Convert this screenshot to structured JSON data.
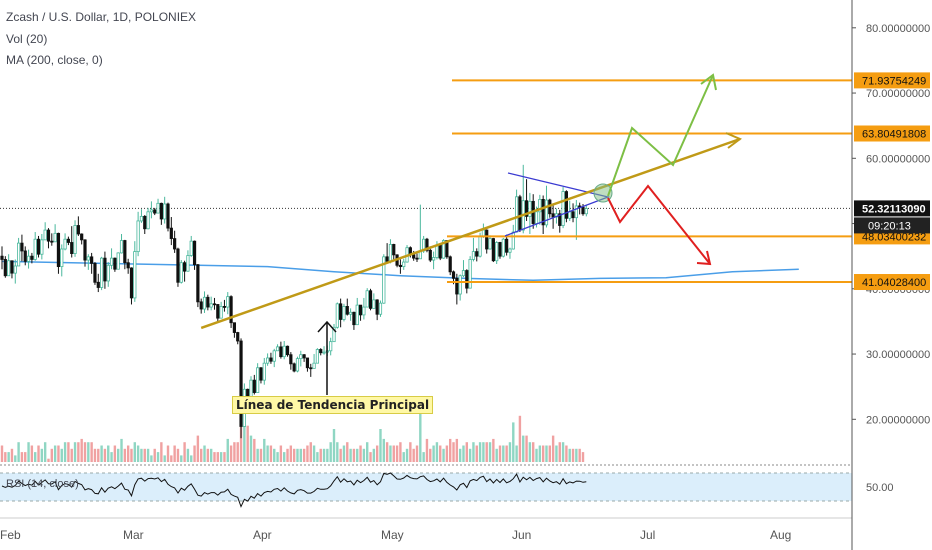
{
  "header": {
    "title": "Zcash / U.S. Dollar, 1D, POLONIEX",
    "vol": "Vol (20)",
    "ma": "MA (200, close, 0)"
  },
  "annotation": {
    "trend_label": "Línea de Tendencia Principal"
  },
  "rsi": {
    "label": "RSI (14, close)",
    "level_label": "50.00"
  },
  "colors": {
    "up": "#4ab89d",
    "down": "#111111",
    "ma": "#4a9ee8",
    "trend": "#c09a17",
    "level": "#f59d11",
    "triangle": "#3a3ad1",
    "green_path": "#7dbf45",
    "red_path": "#e02020",
    "price_label_bg": "#f59d11",
    "rsi_band": "#dbeefb"
  },
  "chart_data": {
    "type": "candlestick",
    "title": "Zcash / U.S. Dollar, 1D, POLONIEX",
    "x_tick_labels": [
      "Feb",
      "Mar",
      "Apr",
      "May",
      "Jun",
      "Jul",
      "Aug"
    ],
    "y_tick_labels": [
      "20.00000000",
      "30.00000000",
      "40.00000000",
      "50.00000000",
      "60.00000000",
      "70.00000000",
      "80.00000000"
    ],
    "y_ticks": [
      20,
      30,
      40,
      50,
      60,
      70,
      80
    ],
    "ylim": [
      13.2,
      82.7
    ],
    "horizontal_levels": [
      {
        "label": "71.93754249",
        "value": 71.94
      },
      {
        "label": "63.80491808",
        "value": 63.8
      },
      {
        "label": "48.03400232",
        "value": 48.03
      },
      {
        "label": "41.04028400",
        "value": 41.04
      }
    ],
    "current_price": {
      "label": "52.32113090",
      "value": 52.32
    },
    "countdown": "09:20:13",
    "ma200": [
      [
        0,
        44.2
      ],
      [
        40,
        43.8
      ],
      [
        80,
        43.4
      ],
      [
        100,
        42.6
      ],
      [
        120,
        42.0
      ],
      [
        140,
        41.6
      ],
      [
        160,
        41.3
      ],
      [
        180,
        41.6
      ],
      [
        200,
        41.7
      ],
      [
        220,
        42.6
      ],
      [
        240,
        43.0
      ]
    ],
    "trend_line": [
      [
        60,
        34.0
      ],
      [
        240,
        58.0
      ]
    ],
    "candles": [
      [
        45.0,
        46.5,
        43.0,
        44.5
      ],
      [
        44.5,
        45.0,
        41.7,
        42.0
      ],
      [
        42.0,
        45.3,
        42.0,
        44.3
      ],
      [
        44.3,
        44.3,
        41.6,
        42.4
      ],
      [
        42.4,
        44.5,
        40.8,
        43.5
      ],
      [
        43.5,
        47.8,
        43.5,
        47.0
      ],
      [
        47.0,
        48.3,
        44.2,
        45.8
      ],
      [
        45.8,
        46.5,
        43.6,
        44.2
      ],
      [
        44.2,
        46.0,
        43.1,
        45.0
      ],
      [
        45.0,
        45.5,
        43.9,
        44.5
      ],
      [
        44.5,
        48.7,
        44.3,
        47.6
      ],
      [
        47.6,
        48.1,
        44.8,
        45.3
      ],
      [
        45.3,
        48.4,
        44.5,
        47.5
      ],
      [
        47.5,
        50.2,
        47.5,
        49.0
      ],
      [
        49.0,
        49.3,
        46.2,
        47.3
      ],
      [
        47.3,
        48.5,
        46.6,
        47.2
      ],
      [
        47.2,
        49.9,
        47.2,
        48.5
      ],
      [
        48.5,
        48.6,
        42.3,
        43.4
      ],
      [
        43.4,
        46.8,
        41.9,
        46.1
      ],
      [
        46.1,
        48.5,
        45.9,
        47.6
      ],
      [
        47.6,
        48.0,
        46.7,
        47.1
      ],
      [
        47.1,
        49.6,
        44.8,
        45.4
      ],
      [
        45.4,
        50.5,
        44.9,
        49.7
      ],
      [
        49.7,
        51.1,
        48.1,
        48.4
      ],
      [
        48.4,
        48.5,
        46.8,
        47.5
      ],
      [
        47.5,
        47.6,
        43.4,
        44.4
      ],
      [
        44.4,
        45.3,
        42.9,
        44.9
      ],
      [
        44.9,
        45.5,
        42.3,
        43.9
      ],
      [
        43.9,
        44.1,
        40.6,
        41.0
      ],
      [
        41.0,
        42.3,
        39.5,
        40.2
      ],
      [
        40.2,
        44.9,
        39.8,
        44.7
      ],
      [
        44.7,
        45.7,
        40.0,
        41.2
      ],
      [
        41.2,
        44.1,
        40.3,
        43.6
      ],
      [
        43.6,
        46.2,
        43.0,
        44.7
      ],
      [
        44.7,
        44.8,
        42.6,
        43.0
      ],
      [
        43.0,
        45.6,
        43.0,
        45.5
      ],
      [
        45.5,
        48.4,
        45.4,
        47.4
      ],
      [
        47.4,
        47.5,
        43.0,
        44.0
      ],
      [
        44.0,
        44.6,
        42.3,
        43.2
      ],
      [
        43.2,
        43.3,
        37.6,
        38.6
      ],
      [
        38.6,
        47.3,
        38.0,
        45.7
      ],
      [
        45.7,
        51.8,
        45.0,
        50.4
      ],
      [
        50.4,
        52.2,
        50.1,
        51.1
      ],
      [
        51.1,
        51.3,
        48.4,
        49.2
      ],
      [
        49.2,
        52.4,
        49.1,
        51.8
      ],
      [
        51.8,
        53.4,
        50.8,
        52.1
      ],
      [
        52.1,
        52.4,
        51.3,
        51.6
      ],
      [
        51.6,
        53.8,
        51.6,
        53.1
      ],
      [
        53.1,
        53.2,
        49.8,
        50.7
      ],
      [
        50.7,
        54.1,
        50.0,
        53.0
      ],
      [
        53.0,
        53.2,
        48.8,
        49.3
      ],
      [
        49.3,
        51.0,
        46.7,
        47.7
      ],
      [
        47.7,
        48.9,
        45.5,
        46.1
      ],
      [
        46.1,
        46.3,
        40.3,
        41.0
      ],
      [
        41.0,
        44.4,
        40.8,
        44.0
      ],
      [
        44.0,
        44.3,
        41.1,
        42.7
      ],
      [
        42.7,
        45.9,
        42.6,
        45.1
      ],
      [
        45.1,
        48.1,
        44.9,
        47.3
      ],
      [
        47.3,
        47.4,
        42.9,
        43.7
      ],
      [
        43.7,
        43.8,
        37.2,
        38.0
      ],
      [
        38.0,
        38.5,
        36.2,
        36.9
      ],
      [
        36.9,
        39.6,
        36.3,
        38.7
      ],
      [
        38.7,
        39.1,
        36.7,
        37.2
      ],
      [
        37.2,
        38.8,
        36.7,
        37.7
      ],
      [
        37.7,
        38.6,
        36.8,
        37.6
      ],
      [
        37.6,
        37.6,
        34.8,
        35.5
      ],
      [
        35.5,
        38.0,
        35.5,
        37.3
      ],
      [
        37.3,
        38.3,
        36.5,
        37.2
      ],
      [
        37.2,
        39.5,
        36.1,
        38.8
      ],
      [
        38.8,
        39.0,
        34.0,
        34.8
      ],
      [
        34.8,
        34.8,
        32.5,
        33.3
      ],
      [
        33.3,
        33.4,
        31.5,
        32.0
      ],
      [
        32.0,
        32.4,
        17.1,
        18.9
      ],
      [
        18.9,
        25.5,
        18.9,
        24.6
      ],
      [
        24.6,
        24.7,
        21.7,
        22.4
      ],
      [
        22.4,
        26.6,
        21.7,
        26.0
      ],
      [
        26.0,
        26.8,
        23.8,
        24.1
      ],
      [
        24.1,
        28.6,
        24.1,
        27.9
      ],
      [
        27.9,
        28.0,
        25.5,
        26.0
      ],
      [
        26.0,
        29.4,
        25.3,
        28.6
      ],
      [
        28.6,
        30.1,
        28.2,
        29.4
      ],
      [
        29.4,
        30.2,
        28.5,
        28.9
      ],
      [
        28.9,
        30.8,
        28.0,
        30.5
      ],
      [
        30.5,
        31.5,
        30.5,
        31.1
      ],
      [
        31.1,
        31.9,
        29.3,
        29.6
      ],
      [
        29.6,
        32.0,
        29.2,
        31.2
      ],
      [
        31.2,
        31.3,
        29.6,
        29.9
      ],
      [
        29.9,
        30.3,
        27.6,
        28.5
      ],
      [
        28.5,
        28.7,
        27.2,
        27.4
      ],
      [
        27.4,
        29.6,
        27.2,
        29.3
      ],
      [
        29.3,
        30.5,
        28.1,
        29.9
      ],
      [
        29.9,
        30.0,
        28.8,
        29.4
      ],
      [
        29.4,
        29.4,
        27.3,
        27.9
      ],
      [
        27.9,
        28.5,
        26.5,
        27.8
      ],
      [
        27.8,
        30.0,
        27.8,
        28.6
      ],
      [
        28.6,
        30.9,
        28.6,
        30.7
      ],
      [
        30.7,
        30.9,
        29.8,
        30.2
      ],
      [
        30.2,
        31.2,
        29.9,
        30.3
      ],
      [
        30.3,
        31.3,
        29.7,
        30.5
      ],
      [
        30.5,
        32.5,
        29.8,
        31.9
      ],
      [
        31.9,
        34.6,
        31.9,
        34.1
      ],
      [
        34.1,
        37.9,
        33.9,
        37.7
      ],
      [
        37.7,
        38.5,
        34.1,
        35.3
      ],
      [
        35.3,
        37.7,
        35.0,
        37.3
      ],
      [
        37.3,
        38.5,
        35.9,
        36.1
      ],
      [
        36.1,
        37.0,
        35.1,
        36.4
      ],
      [
        36.4,
        36.5,
        33.7,
        34.5
      ],
      [
        34.5,
        38.6,
        34.5,
        37.5
      ],
      [
        37.5,
        37.5,
        35.1,
        36.0
      ],
      [
        36.0,
        38.6,
        35.3,
        37.2
      ],
      [
        37.2,
        40.1,
        37.2,
        39.7
      ],
      [
        39.7,
        40.0,
        36.7,
        37.0
      ],
      [
        37.0,
        39.3,
        37.0,
        38.3
      ],
      [
        38.3,
        38.4,
        35.2,
        36.1
      ],
      [
        36.1,
        38.2,
        35.7,
        37.8
      ],
      [
        37.8,
        45.3,
        37.7,
        44.9
      ],
      [
        44.9,
        47.0,
        43.9,
        44.2
      ],
      [
        44.2,
        47.6,
        43.9,
        46.8
      ],
      [
        46.8,
        46.9,
        44.5,
        45.2
      ],
      [
        45.2,
        45.3,
        43.3,
        43.6
      ],
      [
        43.6,
        44.5,
        42.3,
        43.4
      ],
      [
        43.4,
        44.6,
        42.9,
        44.1
      ],
      [
        44.1,
        46.7,
        44.0,
        46.3
      ],
      [
        46.3,
        46.5,
        44.8,
        45.2
      ],
      [
        45.2,
        45.8,
        44.3,
        44.7
      ],
      [
        44.7,
        45.4,
        44.1,
        44.6
      ],
      [
        44.6,
        52.9,
        44.6,
        45.8
      ],
      [
        45.8,
        48.1,
        45.5,
        47.6
      ],
      [
        47.6,
        47.8,
        45.6,
        45.9
      ],
      [
        45.9,
        46.5,
        44.1,
        44.4
      ],
      [
        44.4,
        45.7,
        43.0,
        44.8
      ],
      [
        44.8,
        47.3,
        44.5,
        46.7
      ],
      [
        46.7,
        46.7,
        44.4,
        44.7
      ],
      [
        44.7,
        47.6,
        44.6,
        47.4
      ],
      [
        47.4,
        47.4,
        44.6,
        44.9
      ],
      [
        44.9,
        45.1,
        42.1,
        42.6
      ],
      [
        42.6,
        42.8,
        40.7,
        41.6
      ],
      [
        41.6,
        42.3,
        37.6,
        39.2
      ],
      [
        39.2,
        42.2,
        38.2,
        42.0
      ],
      [
        42.0,
        44.4,
        41.8,
        42.8
      ],
      [
        42.8,
        43.0,
        39.3,
        40.1
      ],
      [
        40.1,
        45.0,
        40.1,
        44.5
      ],
      [
        44.5,
        47.8,
        44.2,
        45.7
      ],
      [
        45.7,
        46.2,
        44.2,
        45.0
      ],
      [
        45.0,
        48.6,
        44.8,
        48.0
      ],
      [
        48.0,
        50.0,
        47.8,
        49.0
      ],
      [
        49.0,
        49.1,
        45.4,
        46.1
      ],
      [
        46.1,
        48.2,
        46.0,
        47.7
      ],
      [
        47.7,
        47.8,
        44.1,
        44.3
      ],
      [
        44.3,
        47.3,
        43.8,
        47.1
      ],
      [
        47.1,
        47.2,
        44.6,
        45.0
      ],
      [
        45.0,
        47.8,
        44.8,
        47.6
      ],
      [
        47.6,
        48.3,
        45.1,
        45.6
      ],
      [
        45.6,
        46.3,
        44.6,
        46.1
      ],
      [
        46.1,
        49.8,
        46.0,
        48.7
      ],
      [
        48.7,
        55.2,
        48.6,
        54.1
      ],
      [
        54.1,
        54.4,
        48.7,
        49.0
      ],
      [
        49.0,
        59.0,
        48.5,
        53.5
      ],
      [
        53.5,
        56.8,
        50.4,
        51.1
      ],
      [
        51.1,
        54.7,
        48.4,
        53.4
      ],
      [
        53.4,
        54.5,
        49.2,
        50.0
      ],
      [
        50.0,
        52.6,
        49.4,
        51.8
      ],
      [
        51.8,
        54.4,
        49.8,
        53.7
      ],
      [
        53.7,
        54.3,
        48.4,
        49.8
      ],
      [
        49.8,
        55.8,
        49.4,
        53.6
      ],
      [
        53.6,
        53.8,
        50.9,
        51.5
      ],
      [
        51.5,
        52.9,
        49.2,
        51.0
      ],
      [
        51.0,
        52.3,
        50.0,
        51.5
      ],
      [
        51.5,
        52.1,
        48.6,
        49.7
      ],
      [
        49.7,
        55.6,
        49.3,
        54.9
      ],
      [
        54.9,
        55.1,
        50.2,
        50.8
      ],
      [
        50.8,
        53.5,
        50.4,
        51.8
      ],
      [
        51.8,
        53.1,
        50.2,
        50.9
      ],
      [
        50.9,
        53.6,
        47.5,
        52.7
      ],
      [
        52.7,
        53.2,
        51.4,
        52.5
      ],
      [
        52.5,
        53.0,
        51.2,
        51.5
      ],
      [
        51.5,
        52.9,
        51.1,
        52.3
      ]
    ],
    "volume": [
      5,
      3,
      3,
      4,
      2,
      6,
      3,
      3,
      6,
      5,
      3,
      5,
      4,
      6,
      1,
      4,
      5,
      5,
      4,
      6,
      6,
      4,
      6,
      6,
      7,
      6,
      6,
      6,
      4,
      4,
      5,
      4,
      5,
      3,
      5,
      4,
      7,
      4,
      5,
      4,
      6,
      5,
      4,
      4,
      4,
      2,
      4,
      3,
      6,
      2,
      5,
      2,
      5,
      4,
      2,
      6,
      4,
      2,
      5,
      8,
      4,
      5,
      4,
      4,
      3,
      3,
      3,
      3,
      7,
      5,
      6,
      6,
      18,
      12,
      11,
      8,
      7,
      4,
      4,
      7,
      5,
      5,
      4,
      3,
      5,
      3,
      4,
      5,
      4,
      4,
      4,
      4,
      5,
      6,
      5,
      3,
      4,
      4,
      4,
      6,
      10,
      6,
      4,
      5,
      6,
      4,
      4,
      4,
      5,
      4,
      6,
      3,
      4,
      5,
      10,
      7,
      6,
      5,
      5,
      5,
      6,
      3,
      4,
      6,
      4,
      5,
      16,
      3,
      7,
      4,
      5,
      6,
      5,
      4,
      5,
      7,
      6,
      7,
      4,
      5,
      6,
      4,
      6,
      5,
      6,
      6,
      6,
      6,
      7,
      4,
      5,
      5,
      5,
      6,
      12,
      5,
      14,
      8,
      8,
      6,
      6,
      4,
      5,
      5,
      5,
      5,
      8,
      5,
      6,
      6,
      5,
      4,
      4,
      4,
      4,
      3
    ],
    "rsi": [
      50.0,
      48.2,
      49.8,
      48.5,
      50.6,
      56.0,
      53.3,
      50.5,
      52.3,
      51.0,
      55.7,
      51.4,
      54.5,
      57.6,
      52.7,
      52.5,
      55.3,
      45.4,
      50.7,
      53.0,
      51.9,
      48.6,
      55.7,
      53.2,
      51.7,
      45.1,
      46.7,
      45.5,
      40.8,
      40.2,
      47.7,
      42.3,
      47.3,
      49.0,
      46.6,
      49.9,
      53.6,
      46.0,
      45.0,
      37.8,
      51.6,
      58.9,
      59.7,
      56.1,
      59.3,
      59.6,
      58.7,
      60.2,
      55.5,
      58.4,
      52.1,
      49.2,
      47.6,
      41.3,
      47.2,
      44.7,
      49.6,
      52.6,
      46.0,
      38.5,
      37.4,
      41.7,
      39.9,
      41.7,
      41.8,
      38.6,
      42.3,
      42.6,
      46.0,
      39.5,
      37.4,
      35.9,
      24.2,
      33.4,
      31.1,
      37.1,
      34.7,
      40.5,
      37.4,
      41.9,
      43.3,
      42.5,
      45.9,
      46.9,
      43.6,
      47.8,
      43.8,
      41.4,
      40.1,
      44.6,
      45.5,
      44.1,
      41.1,
      41.1,
      43.2,
      47.1,
      45.9,
      46.0,
      46.6,
      50.3,
      56.4,
      61.6,
      54.7,
      59.0,
      55.3,
      56.3,
      51.4,
      57.3,
      54.1,
      56.9,
      60.9,
      54.7,
      56.8,
      51.5,
      55.4,
      65.8,
      64.6,
      66.2,
      62.6,
      58.7,
      58.4,
      60.0,
      63.3,
      60.4,
      59.2,
      58.9,
      61.6,
      62.6,
      58.1,
      55.5,
      56.5,
      58.8,
      55.1,
      59.7,
      54.5,
      51.2,
      48.9,
      45.0,
      51.5,
      53.4,
      48.0,
      56.4,
      58.2,
      56.7,
      60.7,
      62.2,
      55.5,
      58.7,
      53.7,
      58.2,
      54.4,
      58.9,
      54.0,
      55.8,
      59.1,
      64.9,
      55.0,
      61.0,
      57.7,
      60.8,
      56.9,
      59.2,
      60.5,
      55.3,
      59.7,
      56.2,
      54.1,
      55.4,
      52.2,
      59.1,
      52.9,
      55.1,
      53.9,
      56.1,
      56.0,
      54.6,
      55.2
    ]
  }
}
